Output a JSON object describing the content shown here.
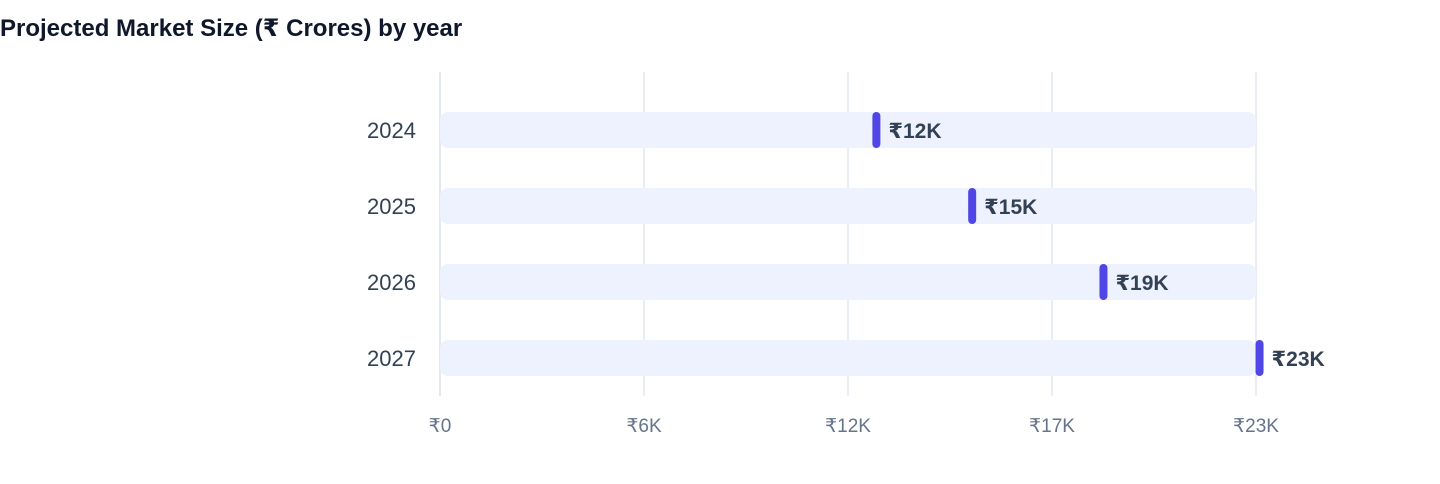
{
  "chart_data": {
    "type": "bar",
    "title": "Projected Market Size (₹ Crores) by year",
    "categories": [
      "2024",
      "2025",
      "2026",
      "2027"
    ],
    "values": [
      12300,
      15000,
      18700,
      23100
    ],
    "data_labels": [
      "₹12K",
      "₹15K",
      "₹19K",
      "₹23K"
    ],
    "orientation": "horizontal",
    "xlim": [
      0,
      23000
    ],
    "x_ticks": [
      0,
      5750,
      11500,
      17250,
      23000
    ],
    "x_tick_labels": [
      "₹0",
      "₹6K",
      "₹12K",
      "₹17K",
      "₹23K"
    ],
    "xlabel": "",
    "ylabel": "",
    "grid": true,
    "legend": "none",
    "colors": {
      "marker": "#4f46e5",
      "track": "#eef2ff",
      "grid": "#e2e8f0",
      "title": "#0f172a"
    }
  }
}
